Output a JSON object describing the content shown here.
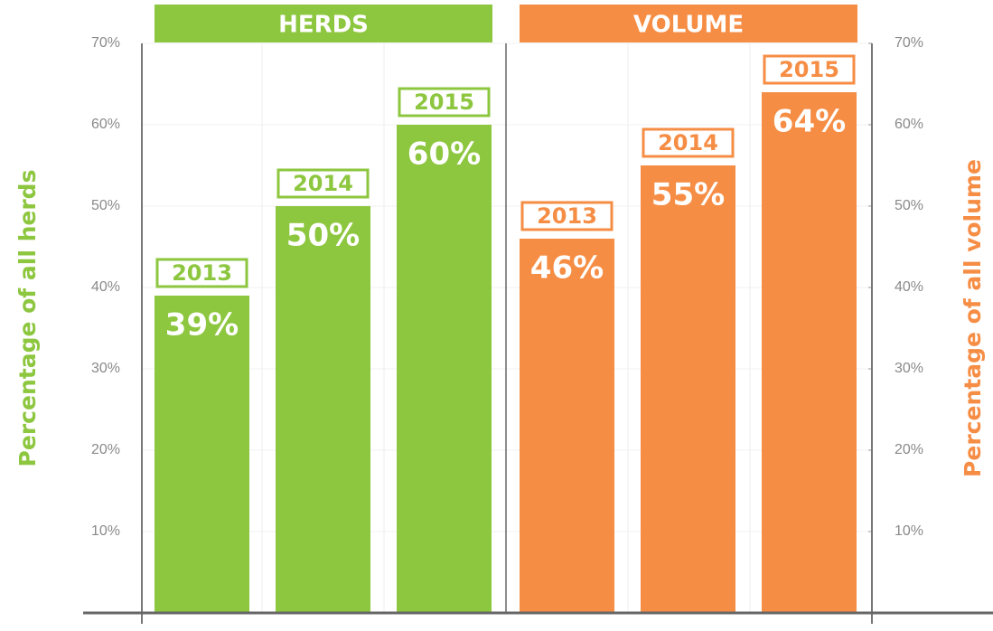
{
  "chart_data": {
    "type": "bar",
    "categories": [
      "2013",
      "2014",
      "2015"
    ],
    "series": [
      {
        "name": "HERDS",
        "color": "#8dc63f",
        "values": [
          39,
          50,
          60
        ],
        "value_labels": [
          "39%",
          "50%",
          "60%"
        ]
      },
      {
        "name": "VOLUME",
        "color": "#f68d45",
        "axis": "y2",
        "values": [
          46,
          55,
          64
        ],
        "value_labels": [
          "46%",
          "55%",
          "64%"
        ]
      }
    ],
    "ylabel": "Percentage of all herds",
    "y2label": "Percentage of all volume",
    "ylim": [
      0,
      70
    ],
    "yticks": [
      {
        "value": 10,
        "label": "10%"
      },
      {
        "value": 20,
        "label": "20%"
      },
      {
        "value": 30,
        "label": "30%"
      },
      {
        "value": 40,
        "label": "40%"
      },
      {
        "value": 50,
        "label": "50%"
      },
      {
        "value": 60,
        "label": "60%"
      },
      {
        "value": 70,
        "label": "70%"
      }
    ],
    "y2lim": [
      0,
      70
    ],
    "y2ticks": [
      {
        "value": 10,
        "label": "10%"
      },
      {
        "value": 20,
        "label": "20%"
      },
      {
        "value": 30,
        "label": "30%"
      },
      {
        "value": 40,
        "label": "40%"
      },
      {
        "value": 50,
        "label": "50%"
      },
      {
        "value": 60,
        "label": "60%"
      },
      {
        "value": 70,
        "label": "70%"
      }
    ],
    "grid": true
  }
}
